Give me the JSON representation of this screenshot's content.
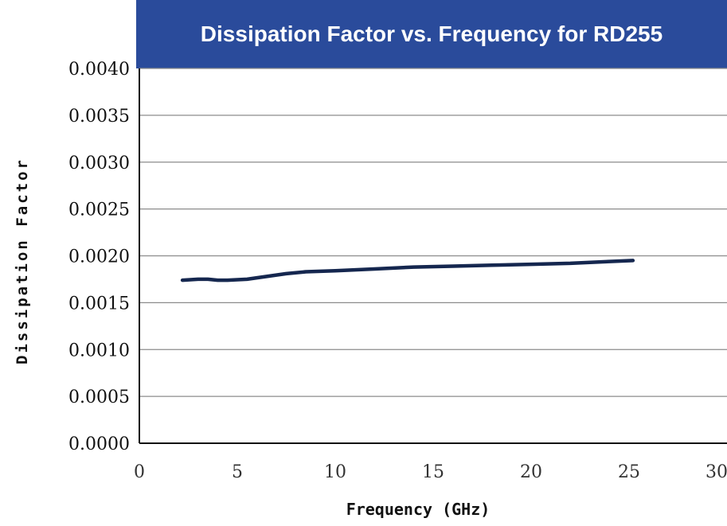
{
  "chart_data": {
    "type": "line",
    "title": "Dissipation Factor vs. Frequency for RD255",
    "xlabel": "Frequency (GHz)",
    "ylabel": "Dissipation Factor",
    "xlim": [
      0,
      30
    ],
    "ylim": [
      0,
      0.004
    ],
    "xticks": [
      "0",
      "5",
      "10",
      "15",
      "20",
      "25",
      "30"
    ],
    "yticks": [
      "0.0000",
      "0.0005",
      "0.0010",
      "0.0015",
      "0.0020",
      "0.0025",
      "0.0030",
      "0.0035",
      "0.0040"
    ],
    "grid": true,
    "series": [
      {
        "x": [
          2.2,
          3.0,
          3.5,
          4.0,
          4.5,
          5.5,
          6.5,
          7.5,
          8.5,
          10,
          12,
          14,
          16,
          18,
          20,
          22,
          24,
          25.2
        ],
        "y": [
          0.00174,
          0.00175,
          0.00175,
          0.00174,
          0.00174,
          0.00175,
          0.00178,
          0.00181,
          0.00183,
          0.00184,
          0.00186,
          0.00188,
          0.00189,
          0.0019,
          0.00191,
          0.00192,
          0.00194,
          0.00195
        ],
        "color": "#15274f"
      }
    ]
  }
}
